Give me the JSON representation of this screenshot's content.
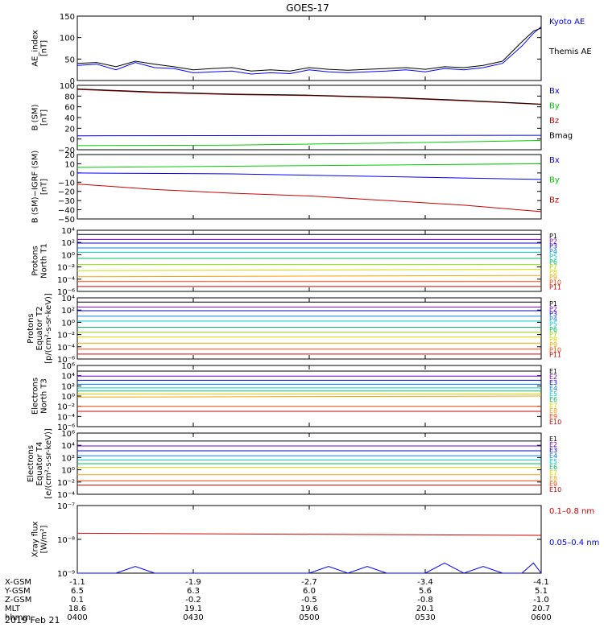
{
  "title": "GOES-17",
  "date": "2019 Feb 21",
  "ephemeris": {
    "rows": [
      {
        "label": "X-GSM",
        "values": [
          "-1.1",
          "-1.9",
          "-2.7",
          "-3.4",
          "-4.1"
        ]
      },
      {
        "label": "Y-GSM",
        "values": [
          "6.5",
          "6.3",
          "6.0",
          "5.6",
          "5.1"
        ]
      },
      {
        "label": "Z-GSM",
        "values": [
          "0.1",
          "-0.2",
          "-0.5",
          "-0.8",
          "-1.0"
        ]
      },
      {
        "label": "MLT",
        "values": [
          "18.6",
          "19.1",
          "19.6",
          "20.1",
          "20.7"
        ]
      },
      {
        "label": "hhmm",
        "values": [
          "0400",
          "0430",
          "0500",
          "0530",
          "0600"
        ]
      }
    ]
  },
  "chart_data": [
    {
      "type": "line",
      "ylabel": [
        "AE_index",
        "[nT]"
      ],
      "ylim": [
        0,
        150
      ],
      "yticks": [
        "0",
        "50",
        "100",
        "150"
      ],
      "series": [
        {
          "name": "Kyoto AE",
          "color": "#0000ff",
          "x": [
            0,
            5,
            10,
            15,
            20,
            25,
            30,
            35,
            40,
            45,
            50,
            55,
            60,
            65,
            70,
            75,
            80,
            85,
            90,
            95,
            100,
            105,
            110,
            115,
            118,
            120
          ],
          "values": [
            35,
            38,
            25,
            42,
            30,
            28,
            18,
            20,
            22,
            15,
            18,
            16,
            25,
            20,
            18,
            20,
            22,
            25,
            20,
            28,
            25,
            30,
            40,
            80,
            110,
            125
          ]
        },
        {
          "name": "Themis AE",
          "color": "#000000",
          "x": [
            0,
            5,
            10,
            15,
            20,
            25,
            30,
            35,
            40,
            45,
            50,
            55,
            60,
            65,
            70,
            75,
            80,
            85,
            90,
            95,
            100,
            105,
            110,
            115,
            118,
            120
          ],
          "values": [
            40,
            42,
            32,
            45,
            38,
            32,
            25,
            28,
            30,
            22,
            25,
            22,
            30,
            26,
            24,
            26,
            28,
            30,
            26,
            32,
            30,
            35,
            45,
            90,
            115,
            122
          ]
        }
      ]
    },
    {
      "type": "line",
      "ylabel": [
        "B (SM)",
        "[nT]"
      ],
      "ylim": [
        -25,
        100
      ],
      "yticks": [
        "−20",
        "0",
        "20",
        "40",
        "60",
        "80",
        "100"
      ],
      "series": [
        {
          "name": "Bx",
          "color": "#0000ff",
          "x": [
            0,
            120
          ],
          "values": [
            2,
            3
          ]
        },
        {
          "name": "By",
          "color": "#00cc00",
          "x": [
            0,
            40,
            80,
            120
          ],
          "values": [
            -17,
            -16,
            -12,
            -7
          ]
        },
        {
          "name": "Bz",
          "color": "#cc0000",
          "x": [
            0,
            20,
            40,
            60,
            80,
            100,
            120
          ],
          "values": [
            92,
            86,
            82,
            80,
            76,
            70,
            63
          ]
        },
        {
          "name": "Bmag",
          "color": "#000000",
          "x": [
            0,
            20,
            40,
            60,
            80,
            100,
            120
          ],
          "values": [
            93,
            87,
            83,
            81,
            77,
            71,
            63.5
          ]
        }
      ]
    },
    {
      "type": "line",
      "ylabel": [
        "B (SM)−IGRF (SM)",
        "[nT]"
      ],
      "ylim": [
        -50,
        20
      ],
      "yticks": [
        "−50",
        "−40",
        "−30",
        "−20",
        "−10",
        "0",
        "10",
        "20"
      ],
      "series": [
        {
          "name": "Bx",
          "color": "#0000ff",
          "x": [
            0,
            40,
            80,
            120
          ],
          "values": [
            0,
            -1,
            -4,
            -7
          ]
        },
        {
          "name": "By",
          "color": "#00cc00",
          "x": [
            0,
            60,
            120
          ],
          "values": [
            6,
            8,
            10
          ]
        },
        {
          "name": "Bz",
          "color": "#cc0000",
          "x": [
            0,
            20,
            40,
            60,
            80,
            100,
            120
          ],
          "values": [
            -12,
            -18,
            -22,
            -25,
            -30,
            -35,
            -42
          ]
        }
      ]
    },
    {
      "type": "line",
      "ylabel": [
        "Protons",
        "North T1"
      ],
      "ylog": true,
      "ylim": [
        -6,
        4
      ],
      "yticks": [
        "10⁻⁶",
        "10⁻⁴",
        "10⁻²",
        "10⁰",
        "10²",
        "10⁴"
      ],
      "series": [
        {
          "name": "P1",
          "color": "#000000",
          "x": [
            0,
            120
          ],
          "values": [
            3.3,
            3.3
          ]
        },
        {
          "name": "P2",
          "color": "#7a00c8",
          "x": [
            0,
            120
          ],
          "values": [
            2.5,
            2.5
          ]
        },
        {
          "name": "P3",
          "color": "#0000ff",
          "x": [
            0,
            120
          ],
          "values": [
            1.9,
            1.9
          ]
        },
        {
          "name": "P4",
          "color": "#0080ff",
          "x": [
            0,
            120
          ],
          "values": [
            1.1,
            1.1
          ]
        },
        {
          "name": "P5",
          "color": "#00c8c8",
          "x": [
            0,
            120
          ],
          "values": [
            0.4,
            0.4
          ]
        },
        {
          "name": "P6",
          "color": "#00c060",
          "x": [
            0,
            120
          ],
          "values": [
            -0.6,
            -0.6
          ]
        },
        {
          "name": "P7",
          "color": "#90e000",
          "x": [
            0,
            120
          ],
          "values": [
            -1.6,
            -1.6
          ]
        },
        {
          "name": "P8",
          "color": "#d8d800",
          "x": [
            0,
            120
          ],
          "values": [
            -2.6,
            -2.4
          ]
        },
        {
          "name": "P9",
          "color": "#ffa000",
          "x": [
            0,
            120
          ],
          "values": [
            -3.6,
            -3.4
          ]
        },
        {
          "name": "P10",
          "color": "#ff4000",
          "x": [
            0,
            120
          ],
          "values": [
            -4.4,
            -4.4
          ]
        },
        {
          "name": "P11",
          "color": "#cc0000",
          "x": [
            0,
            120
          ],
          "values": [
            -5.2,
            -5.2
          ]
        }
      ]
    },
    {
      "type": "line",
      "ylabel": [
        "Protons",
        "Equator T2",
        "[p/(cm²-s-sr-keV)]"
      ],
      "ylog": true,
      "ylim": [
        -6,
        4
      ],
      "yticks": [
        "10⁻⁶",
        "10⁻⁴",
        "10⁻²",
        "10⁰",
        "10²",
        "10⁴"
      ],
      "series": [
        {
          "name": "P1",
          "color": "#000000",
          "x": [
            0,
            120
          ],
          "values": [
            3.3,
            3.3
          ]
        },
        {
          "name": "P2",
          "color": "#7a00c8",
          "x": [
            0,
            120
          ],
          "values": [
            2.5,
            2.5
          ]
        },
        {
          "name": "P3",
          "color": "#0000ff",
          "x": [
            0,
            120
          ],
          "values": [
            1.9,
            1.9
          ]
        },
        {
          "name": "P4",
          "color": "#0080ff",
          "x": [
            0,
            120
          ],
          "values": [
            1.0,
            1.0
          ]
        },
        {
          "name": "P5",
          "color": "#00c8c8",
          "x": [
            0,
            120
          ],
          "values": [
            0.2,
            0.2
          ]
        },
        {
          "name": "P6",
          "color": "#00c060",
          "x": [
            0,
            120
          ],
          "values": [
            -0.8,
            -0.8
          ]
        },
        {
          "name": "P7",
          "color": "#90e000",
          "x": [
            0,
            120
          ],
          "values": [
            -1.6,
            -1.6
          ]
        },
        {
          "name": "P8",
          "color": "#d8d800",
          "x": [
            0,
            120
          ],
          "values": [
            -2.4,
            -2.4
          ]
        },
        {
          "name": "P9",
          "color": "#ffa000",
          "x": [
            0,
            120
          ],
          "values": [
            -3.4,
            -3.4
          ]
        },
        {
          "name": "P10",
          "color": "#ff4000",
          "x": [
            0,
            120
          ],
          "values": [
            -4.4,
            -4.4
          ]
        },
        {
          "name": "P11",
          "color": "#cc0000",
          "x": [
            0,
            120
          ],
          "values": [
            -5.2,
            -5.2
          ]
        }
      ]
    },
    {
      "type": "line",
      "ylabel": [
        "Electrons",
        "North T3"
      ],
      "ylog": true,
      "ylim": [
        -6,
        6
      ],
      "yticks": [
        "10⁻⁶",
        "10⁻⁴",
        "10⁻²",
        "10⁰",
        "10²",
        "10⁴",
        "10⁶"
      ],
      "series": [
        {
          "name": "E1",
          "color": "#000000",
          "x": [
            0,
            120
          ],
          "values": [
            4.9,
            4.9
          ]
        },
        {
          "name": "E2",
          "color": "#7a00c8",
          "x": [
            0,
            120
          ],
          "values": [
            3.9,
            3.9
          ]
        },
        {
          "name": "E3",
          "color": "#0000ff",
          "x": [
            0,
            120
          ],
          "values": [
            3.1,
            3.1
          ]
        },
        {
          "name": "E4",
          "color": "#0080ff",
          "x": [
            0,
            120
          ],
          "values": [
            2.3,
            2.3
          ]
        },
        {
          "name": "E5",
          "color": "#00c8c8",
          "x": [
            0,
            120
          ],
          "values": [
            1.6,
            1.6
          ]
        },
        {
          "name": "E6",
          "color": "#00c060",
          "x": [
            0,
            120
          ],
          "values": [
            1.0,
            1.0
          ]
        },
        {
          "name": "E7",
          "color": "#d8d800",
          "x": [
            0,
            120
          ],
          "values": [
            0.4,
            0.4
          ]
        },
        {
          "name": "E8",
          "color": "#ffa000",
          "x": [
            0,
            120
          ],
          "values": [
            -0.2,
            0.0
          ]
        },
        {
          "name": "E9",
          "color": "#ff4000",
          "x": [
            0,
            120
          ],
          "values": [
            -2.0,
            -2.0
          ]
        },
        {
          "name": "E10",
          "color": "#cc0000",
          "x": [
            0,
            120
          ],
          "values": [
            -3.0,
            -3.0
          ]
        }
      ]
    },
    {
      "type": "line",
      "ylabel": [
        "Electrons",
        "Equator T4",
        "[e/(cm²-s-sr-keV)]"
      ],
      "ylog": true,
      "ylim": [
        -4,
        6
      ],
      "yticks": [
        "10⁻⁴",
        "10⁻²",
        "10⁰",
        "10²",
        "10⁴",
        "10⁶"
      ],
      "series": [
        {
          "name": "E1",
          "color": "#000000",
          "x": [
            0,
            120
          ],
          "values": [
            4.7,
            4.7
          ]
        },
        {
          "name": "E2",
          "color": "#7a00c8",
          "x": [
            0,
            120
          ],
          "values": [
            3.9,
            3.9
          ]
        },
        {
          "name": "E3",
          "color": "#0000ff",
          "x": [
            0,
            120
          ],
          "values": [
            3.1,
            3.1
          ]
        },
        {
          "name": "E4",
          "color": "#0080ff",
          "x": [
            0,
            120
          ],
          "values": [
            2.3,
            2.3
          ]
        },
        {
          "name": "E5",
          "color": "#00c8c8",
          "x": [
            0,
            120
          ],
          "values": [
            1.6,
            1.6
          ]
        },
        {
          "name": "E6",
          "color": "#00c060",
          "x": [
            0,
            120
          ],
          "values": [
            1.0,
            1.0
          ]
        },
        {
          "name": "E7",
          "color": "#d8d800",
          "x": [
            0,
            120
          ],
          "values": [
            0.4,
            0.4
          ]
        },
        {
          "name": "E8",
          "color": "#ffa000",
          "x": [
            0,
            120
          ],
          "values": [
            -0.8,
            -0.8
          ]
        },
        {
          "name": "E9",
          "color": "#ff4000",
          "x": [
            0,
            120
          ],
          "values": [
            -1.8,
            -1.8
          ]
        },
        {
          "name": "E10",
          "color": "#cc0000",
          "x": [
            0,
            120
          ],
          "values": [
            -2.5,
            -2.5
          ]
        }
      ]
    },
    {
      "type": "line",
      "ylabel": [
        "Xray flux",
        "[W/m²]"
      ],
      "ylog": true,
      "ylim": [
        -9,
        -7
      ],
      "yticks": [
        "10⁻⁹",
        "10⁻⁸",
        "10⁻⁷"
      ],
      "series": [
        {
          "name": "0.1–0.8 nm",
          "color": "#cc0000",
          "x": [
            0,
            120
          ],
          "values": [
            -7.82,
            -7.88
          ]
        },
        {
          "name": "0.05–0.4 nm",
          "color": "#0000ff",
          "x": [
            0,
            5,
            10,
            15,
            20,
            25,
            30,
            35,
            40,
            45,
            50,
            55,
            60,
            65,
            70,
            75,
            80,
            85,
            90,
            95,
            100,
            105,
            110,
            115,
            118,
            120
          ],
          "values": [
            -9,
            -9,
            -9,
            -8.8,
            -9,
            -9,
            -9,
            -9,
            -9,
            -9,
            -9,
            -9,
            -9,
            -8.8,
            -9,
            -8.8,
            -9,
            -9,
            -9,
            -8.7,
            -9,
            -8.8,
            -9,
            -9,
            -8.7,
            -9
          ]
        }
      ]
    }
  ]
}
